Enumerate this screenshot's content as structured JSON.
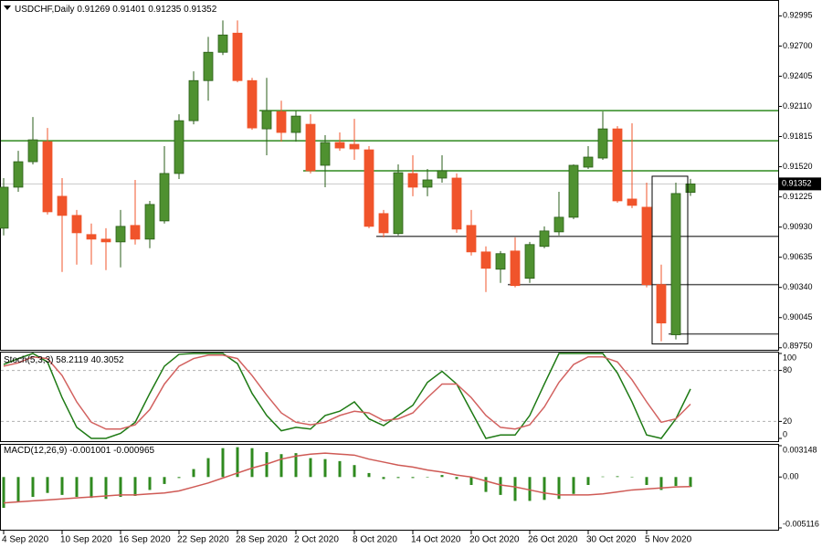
{
  "chart_data": [
    {
      "type": "candlestick",
      "title": "USDCHF,Daily",
      "categories": [
        "4 Sep 2020",
        null,
        null,
        null,
        "10 Sep 2020",
        null,
        null,
        null,
        "16 Sep 2020",
        null,
        null,
        null,
        "22 Sep 2020",
        null,
        null,
        null,
        "28 Sep 2020",
        null,
        null,
        null,
        "2 Oct 2020",
        null,
        null,
        null,
        "8 Oct 2020",
        null,
        null,
        null,
        "14 Oct 2020",
        null,
        null,
        null,
        "20 Oct 2020",
        null,
        null,
        null,
        "26 Oct 2020",
        null,
        null,
        null,
        "30 Oct 2020",
        null,
        null,
        null,
        "5 Nov 2020",
        null,
        null,
        null
      ],
      "open": [
        0.90919,
        0.9132,
        0.91569,
        0.91765,
        0.91231,
        0.91044,
        0.90857,
        0.90812,
        0.90785,
        0.90946,
        0.90812,
        0.9099,
        0.91454,
        0.9197,
        0.92362,
        0.92639,
        0.92826,
        0.92362,
        0.9189,
        0.92059,
        0.91855,
        0.91935,
        0.91534,
        0.91757,
        0.91739,
        0.91685,
        0.91062,
        0.90866,
        0.91454,
        0.9132,
        0.91409,
        0.91409,
        0.90946,
        0.90687,
        0.90518,
        0.90696,
        0.90429,
        0.90741,
        0.90883,
        0.91026,
        0.91516,
        0.91605,
        0.9189,
        0.91204,
        0.91124,
        0.90367,
        0.89877,
        0.91269
      ],
      "high": [
        0.91409,
        0.91676,
        0.92006,
        0.91899,
        0.91409,
        0.91097,
        0.90964,
        0.90919,
        0.91097,
        0.91391,
        0.91186,
        0.91721,
        0.92033,
        0.92452,
        0.9279,
        0.9295,
        0.9295,
        0.92389,
        0.92389,
        0.92166,
        0.92068,
        0.92033,
        0.91828,
        0.91855,
        0.91988,
        0.91721,
        0.91097,
        0.91543,
        0.91632,
        0.91498,
        0.91632,
        0.91454,
        0.91097,
        0.90741,
        0.90696,
        0.9083,
        0.90785,
        0.90937,
        0.91275,
        0.91543,
        0.91721,
        0.92059,
        0.91917,
        0.91944,
        0.91364,
        0.90563,
        0.91364,
        0.91401
      ],
      "low": [
        0.90848,
        0.91275,
        0.91543,
        0.91053,
        0.90491,
        0.90563,
        0.90563,
        0.90509,
        0.90536,
        0.90759,
        0.90723,
        0.90964,
        0.914,
        0.91935,
        0.92166,
        0.92612,
        0.92345,
        0.91881,
        0.91632,
        0.91765,
        0.91765,
        0.91454,
        0.9132,
        0.91676,
        0.91587,
        0.90919,
        0.9083,
        0.90848,
        0.91231,
        0.91231,
        0.91364,
        0.90874,
        0.90652,
        0.90295,
        0.90384,
        0.9034,
        0.90384,
        0.90723,
        0.90848,
        0.91008,
        0.91498,
        0.91587,
        0.91168,
        0.91115,
        0.9034,
        0.89814,
        0.89832,
        0.91235
      ],
      "close": [
        0.9132,
        0.91569,
        0.91783,
        0.91079,
        0.91044,
        0.90874,
        0.90812,
        0.90785,
        0.90937,
        0.90812,
        0.91151,
        0.91454,
        0.9197,
        0.92362,
        0.92639,
        0.92808,
        0.92362,
        0.91899,
        0.92068,
        0.91855,
        0.92015,
        0.9148,
        0.91757,
        0.91703,
        0.91694,
        0.90937,
        0.90874,
        0.91462,
        0.9132,
        0.91391,
        0.9148,
        0.9091,
        0.90687,
        0.90527,
        0.9067,
        0.90358,
        0.90759,
        0.90892,
        0.91026,
        0.91534,
        0.91614,
        0.9189,
        0.91186,
        0.91142,
        0.90367,
        0.89992,
        0.91258,
        0.91352
      ],
      "up_color": "#4f9130",
      "down_color": "#f0542b",
      "ylim": [
        0.8973,
        0.9315
      ],
      "yticks": [
        0.92995,
        {
          "value": 0.927,
          "label": "0.92700"
        },
        0.92405,
        {
          "value": 0.9211,
          "label": "0.92110"
        },
        0.91815,
        {
          "value": 0.9152,
          "label": "0.91520"
        },
        0.91225,
        {
          "value": 0.9093,
          "label": "0.90930"
        },
        0.90635,
        {
          "value": 0.9034,
          "label": "0.90340"
        },
        0.90045,
        {
          "value": 0.8975,
          "label": "0.89750"
        }
      ],
      "grid": false,
      "hlines": [
        {
          "value": 0.92068,
          "start": 18,
          "color": "#2f8a1f"
        },
        {
          "value": 0.91774,
          "start": 0,
          "color": "#2f8a1f"
        },
        {
          "value": 0.9148,
          "start": 21,
          "color": "#2f8a1f"
        },
        {
          "value": 0.90839,
          "start": 26,
          "color": "#555555"
        },
        {
          "value": 0.90367,
          "start": 35,
          "color": "#555555"
        },
        {
          "value": 0.89885,
          "start": 46,
          "color": "#555555"
        }
      ],
      "box": {
        "from": 45,
        "to": 46,
        "top": 0.91427,
        "bottom": 0.89787,
        "color": "#000000"
      }
    },
    {
      "type": "line",
      "title": "Stoch(5,3,3)",
      "series": [
        {
          "color": "#1e7a14",
          "values": [
            87,
            94,
            100,
            90,
            48,
            13,
            0,
            0,
            6,
            19,
            53,
            85,
            99,
            100,
            100,
            100,
            88,
            53,
            27,
            9,
            13,
            11,
            27,
            32,
            43,
            23,
            15,
            27,
            39,
            66,
            79,
            64,
            32,
            0,
            4,
            4,
            27,
            64,
            100,
            100,
            100,
            100,
            77,
            43,
            4,
            0,
            23,
            58.2119
          ]
        },
        {
          "color": "#d2615f",
          "values": [
            85,
            89,
            96,
            94,
            74,
            43,
            19,
            11,
            11,
            16,
            34,
            64,
            85,
            94,
            98,
            98,
            94,
            74,
            51,
            30,
            19,
            16,
            19,
            27,
            32,
            30,
            21,
            23,
            30,
            48,
            64,
            64,
            48,
            27,
            13,
            11,
            16,
            37,
            66,
            87,
            96,
            96,
            90,
            69,
            43,
            19,
            23,
            40.3052
          ]
        }
      ],
      "ylim": [
        0,
        100
      ],
      "yticks": [
        100,
        80,
        20,
        0
      ],
      "grid": true
    },
    {
      "type": "bar",
      "title": "MACD(12,26,9)",
      "color": "#2f8a1f",
      "values": [
        -0.0031,
        -0.0025,
        -0.002,
        -0.0016,
        -0.0018,
        -0.002,
        -0.0021,
        -0.0022,
        -0.002,
        -0.0019,
        -0.0013,
        -0.0007,
        -0.0001,
        0.0008,
        0.0019,
        0.0029,
        0.003,
        0.0029,
        0.0025,
        0.0023,
        0.0024,
        0.0019,
        0.0018,
        0.0016,
        0.0012,
        0.0004,
        -0.0002,
        -0.0001,
        -0.0001,
        -3e-05,
        0.0002,
        -0.0002,
        -0.0008,
        -0.0015,
        -0.0018,
        -0.0024,
        -0.0024,
        -0.0023,
        -0.0022,
        -0.0017,
        -0.0008,
        5e-05,
        8e-05,
        3e-05,
        -0.0008,
        -0.0013,
        -0.0009,
        -0.001001
      ],
      "line": {
        "color": "#cf5a55",
        "values": [
          -0.0026,
          -0.0025,
          -0.0024,
          -0.0023,
          -0.0022,
          -0.0021,
          -0.002,
          -0.0019,
          -0.0018,
          -0.0018,
          -0.0017,
          -0.0016,
          -0.0014,
          -0.001,
          -0.0006,
          -0.0001,
          0.0004,
          0.0009,
          0.0013,
          0.0018,
          0.0021,
          0.0023,
          0.0024,
          0.0023,
          0.0022,
          0.0018,
          0.0015,
          0.0012,
          0.001,
          0.0007,
          0.0005,
          0.0002,
          0,
          -0.0004,
          -0.0008,
          -0.001,
          -0.0013,
          -0.0016,
          -0.0018,
          -0.0018,
          -0.0018,
          -0.0017,
          -0.0015,
          -0.0013,
          -0.0012,
          -0.0011,
          -0.001,
          -0.000965
        ]
      },
      "ylim": [
        -0.005116,
        0.003148
      ],
      "yticks": [
        0.003148,
        {
          "value": 0,
          "label": "0.00"
        },
        -0.005116
      ],
      "grid": false
    }
  ]
}
